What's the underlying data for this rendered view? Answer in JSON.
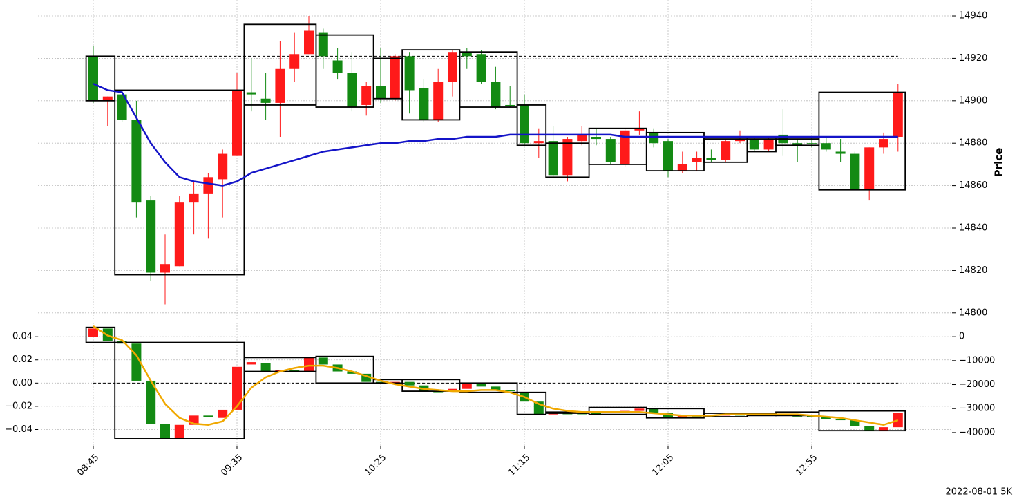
{
  "chart_data": [
    {
      "type": "candlestick",
      "ylabel": "Price",
      "up_color": "#ff1a1a",
      "down_color": "#138a13",
      "open": [
        14921,
        14900,
        14903,
        14891,
        14853,
        14819,
        14822,
        14852,
        14856,
        14863,
        14874,
        14904,
        14901,
        14899,
        14915,
        14922,
        14932,
        14919,
        14913,
        14898,
        14907,
        14901,
        14921,
        14906,
        14891,
        14909,
        14923,
        14922,
        14909,
        14898,
        14898,
        14880,
        14881,
        14865,
        14881,
        14883,
        14882,
        14870,
        14886,
        14885,
        14881,
        14867,
        14871,
        14873,
        14872,
        14881,
        14882,
        14877,
        14884,
        14880,
        14880,
        14880,
        14876,
        14875,
        14858,
        14878,
        14883
      ],
      "high": [
        14926,
        14902,
        14904,
        14900,
        14855,
        14837,
        14855,
        14862,
        14866,
        14877,
        14913,
        14920,
        14913,
        14928,
        14932,
        14940,
        14934,
        14925,
        14923,
        14909,
        14925,
        14922,
        14923,
        14910,
        14915,
        14924,
        14925,
        14924,
        14916,
        14907,
        14903,
        14887,
        14888,
        14883,
        14888,
        14887,
        14883,
        14887,
        14895,
        14887,
        14882,
        14876,
        14876,
        14877,
        14882,
        14886,
        14883,
        14883,
        14896,
        14882,
        14883,
        14883,
        14882,
        14876,
        14878,
        14885,
        14908
      ],
      "low": [
        14899,
        14888,
        14890,
        14845,
        14815,
        14804,
        14822,
        14837,
        14835,
        14845,
        14874,
        14895,
        14891,
        14883,
        14909,
        14922,
        14915,
        14910,
        14895,
        14893,
        14899,
        14900,
        14894,
        14890,
        14890,
        14902,
        14915,
        14908,
        14896,
        14897,
        14879,
        14873,
        14864,
        14862,
        14879,
        14879,
        14870,
        14869,
        14884,
        14878,
        14864,
        14866,
        14867,
        14871,
        14871,
        14880,
        14876,
        14876,
        14874,
        14871,
        14878,
        14876,
        14871,
        14858,
        14853,
        14875,
        14876
      ],
      "close": [
        14900,
        14902,
        14891,
        14852,
        14819,
        14823,
        14852,
        14856,
        14864,
        14875,
        14905,
        14903,
        14899,
        14915,
        14922,
        14933,
        14921,
        14913,
        14897,
        14907,
        14901,
        14921,
        14905,
        14891,
        14909,
        14923,
        14921,
        14909,
        14897,
        14898,
        14880,
        14881,
        14865,
        14882,
        14884,
        14882,
        14871,
        14886,
        14887,
        14880,
        14867,
        14870,
        14873,
        14872,
        14881,
        14882,
        14877,
        14882,
        14880,
        14879,
        14880,
        14877,
        14875,
        14858,
        14878,
        14882,
        14904
      ],
      "line": {
        "color": "#1414c8",
        "values": [
          14908,
          14905,
          14904,
          14892,
          14880,
          14871,
          14864,
          14862,
          14861,
          14860,
          14862,
          14866,
          14868,
          14870,
          14872,
          14874,
          14876,
          14877,
          14878,
          14879,
          14880,
          14880,
          14881,
          14881,
          14882,
          14882,
          14883,
          14883,
          14883,
          14884,
          14884,
          14884,
          14884,
          14884,
          14884,
          14884,
          14884,
          14883,
          14883,
          14883,
          14883,
          14883,
          14883,
          14883,
          14883,
          14883,
          14883,
          14883,
          14883,
          14883,
          14883,
          14883,
          14883,
          14883,
          14883,
          14883,
          14883
        ]
      },
      "hline": 14921,
      "boxes": [
        {
          "from": 0,
          "to": 1,
          "low": 14900,
          "high": 14921
        },
        {
          "from": 2,
          "to": 10,
          "low": 14818,
          "high": 14905
        },
        {
          "from": 11,
          "to": 15,
          "low": 14898,
          "high": 14936
        },
        {
          "from": 16,
          "to": 19,
          "low": 14897,
          "high": 14931
        },
        {
          "from": 20,
          "to": 21,
          "low": 14901,
          "high": 14920
        },
        {
          "from": 22,
          "to": 25,
          "low": 14891,
          "high": 14924
        },
        {
          "from": 26,
          "to": 29,
          "low": 14897,
          "high": 14923
        },
        {
          "from": 30,
          "to": 31,
          "low": 14879,
          "high": 14898
        },
        {
          "from": 32,
          "to": 34,
          "low": 14864,
          "high": 14880
        },
        {
          "from": 35,
          "to": 38,
          "low": 14870,
          "high": 14887
        },
        {
          "from": 39,
          "to": 42,
          "low": 14867,
          "high": 14885
        },
        {
          "from": 43,
          "to": 45,
          "low": 14871,
          "high": 14882
        },
        {
          "from": 46,
          "to": 47,
          "low": 14876,
          "high": 14882
        },
        {
          "from": 48,
          "to": 50,
          "low": 14879,
          "high": 14882
        },
        {
          "from": 51,
          "to": 56,
          "low": 14858,
          "high": 14904
        }
      ],
      "ylim": [
        14797,
        14947.5
      ],
      "yticks": [
        14800,
        14820,
        14840,
        14860,
        14880,
        14900,
        14920,
        14940
      ],
      "grid": true
    },
    {
      "type": "candlestick",
      "up_color": "#ff1a1a",
      "down_color": "#138a13",
      "categories": [
        "08:45",
        null,
        null,
        null,
        null,
        null,
        null,
        null,
        null,
        null,
        "09:35",
        null,
        null,
        null,
        null,
        null,
        null,
        null,
        null,
        null,
        "10:25",
        null,
        null,
        null,
        null,
        null,
        null,
        null,
        null,
        null,
        "11:15",
        null,
        null,
        null,
        null,
        null,
        null,
        null,
        null,
        null,
        "12:05",
        null,
        null,
        null,
        null,
        null,
        null,
        null,
        null,
        null,
        "12:55",
        null,
        null,
        null,
        null,
        null,
        null
      ],
      "open": [
        0.04,
        0.047,
        0.036,
        0.034,
        0.002,
        -0.035,
        -0.048,
        -0.036,
        -0.028,
        -0.03,
        -0.023,
        0.016,
        0.017,
        0.01,
        0.011,
        0.01,
        0.022,
        0.016,
        0.01,
        0.008,
        0.001,
        0.0,
        0.001,
        -0.002,
        -0.007,
        -0.007,
        -0.005,
        -0.001,
        -0.003,
        -0.006,
        -0.008,
        -0.016,
        -0.027,
        -0.026,
        -0.026,
        -0.026,
        -0.026,
        -0.025,
        -0.024,
        -0.022,
        -0.026,
        -0.03,
        -0.028,
        -0.028,
        -0.028,
        -0.027,
        -0.028,
        -0.027,
        -0.027,
        -0.028,
        -0.028,
        -0.029,
        -0.031,
        -0.032,
        -0.037,
        -0.041,
        -0.038
      ],
      "close": [
        0.047,
        0.036,
        0.034,
        0.002,
        -0.035,
        -0.048,
        -0.036,
        -0.028,
        -0.029,
        -0.023,
        0.014,
        0.018,
        0.01,
        0.011,
        0.01,
        0.022,
        0.016,
        0.01,
        0.008,
        0.001,
        0.0,
        0.001,
        -0.002,
        -0.007,
        -0.007,
        -0.005,
        -0.001,
        -0.003,
        -0.006,
        -0.007,
        -0.016,
        -0.027,
        -0.026,
        -0.026,
        -0.026,
        -0.026,
        -0.025,
        -0.024,
        -0.022,
        -0.026,
        -0.03,
        -0.028,
        -0.028,
        -0.028,
        -0.027,
        -0.028,
        -0.027,
        -0.027,
        -0.028,
        -0.028,
        -0.029,
        -0.031,
        -0.032,
        -0.037,
        -0.041,
        -0.038,
        -0.026
      ],
      "line": {
        "color": "#f0a800",
        "values": [
          0.049,
          0.041,
          0.037,
          0.024,
          0.002,
          -0.018,
          -0.03,
          -0.035,
          -0.036,
          -0.033,
          -0.02,
          -0.004,
          0.005,
          0.01,
          0.013,
          0.015,
          0.015,
          0.013,
          0.01,
          0.006,
          0.002,
          -0.001,
          -0.003,
          -0.005,
          -0.006,
          -0.007,
          -0.007,
          -0.006,
          -0.006,
          -0.008,
          -0.012,
          -0.018,
          -0.022,
          -0.024,
          -0.025,
          -0.025,
          -0.025,
          -0.025,
          -0.025,
          -0.026,
          -0.027,
          -0.028,
          -0.028,
          -0.028,
          -0.027,
          -0.027,
          -0.027,
          -0.027,
          -0.027,
          -0.027,
          -0.028,
          -0.029,
          -0.03,
          -0.032,
          -0.034,
          -0.036,
          -0.032
        ]
      },
      "hline": 0,
      "boxes": [
        {
          "from": 0,
          "to": 1,
          "low": 0.035,
          "high": 0.048
        },
        {
          "from": 2,
          "to": 10,
          "low": -0.048,
          "high": 0.035
        },
        {
          "from": 11,
          "to": 15,
          "low": 0.01,
          "high": 0.022
        },
        {
          "from": 16,
          "to": 19,
          "low": 0.0,
          "high": 0.023
        },
        {
          "from": 20,
          "to": 21,
          "low": 0.0,
          "high": 0.003
        },
        {
          "from": 22,
          "to": 25,
          "low": -0.007,
          "high": 0.003
        },
        {
          "from": 26,
          "to": 29,
          "low": -0.008,
          "high": 0.0
        },
        {
          "from": 30,
          "to": 31,
          "low": -0.027,
          "high": -0.008
        },
        {
          "from": 32,
          "to": 34,
          "low": -0.026,
          "high": -0.025
        },
        {
          "from": 35,
          "to": 38,
          "low": -0.027,
          "high": -0.021
        },
        {
          "from": 39,
          "to": 42,
          "low": -0.03,
          "high": -0.022
        },
        {
          "from": 43,
          "to": 45,
          "low": -0.029,
          "high": -0.026
        },
        {
          "from": 46,
          "to": 47,
          "low": -0.028,
          "high": -0.026
        },
        {
          "from": 48,
          "to": 50,
          "low": -0.028,
          "high": -0.025
        },
        {
          "from": 51,
          "to": 56,
          "low": -0.041,
          "high": -0.024
        }
      ],
      "ylim": [
        -0.054,
        0.052
      ],
      "yticks": [
        {
          "value": -0.04,
          "label": "−0.04"
        },
        {
          "value": -0.02,
          "label": "−0.02"
        },
        {
          "value": 0,
          "label": "0.00"
        },
        0.02,
        0.04
      ],
      "y2lim": [
        -45500,
        5800
      ],
      "y2ticks": [
        {
          "value": -40000,
          "label": "−40000"
        },
        {
          "value": -30000,
          "label": "−30000"
        },
        {
          "value": -20000,
          "label": "−20000"
        },
        {
          "value": -10000,
          "label": "−10000"
        },
        0
      ],
      "grid": true,
      "footer": "2022-08-01 5K"
    }
  ]
}
